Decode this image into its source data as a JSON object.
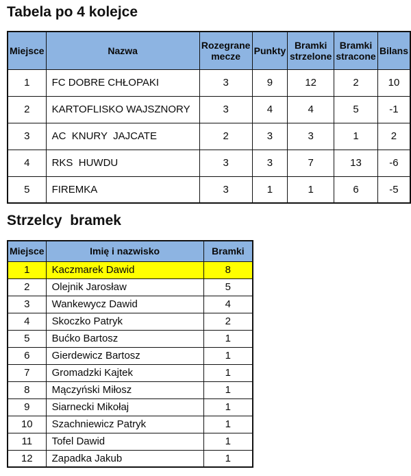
{
  "titles": {
    "league": "Tabela po 4 kolejce",
    "scorers": "Strzelcy  bramek"
  },
  "colors": {
    "header_bg": "#8DB4E2",
    "highlight": "#FFFF00",
    "border": "#111111",
    "text": "#0a0a0a"
  },
  "league_table": {
    "headers": [
      "Miejsce",
      "Nazwa",
      "Rozegrane mecze",
      "Punkty",
      "Bramki strzelone",
      "Bramki stracone",
      "Bilans"
    ],
    "rows": [
      [
        "1",
        "FC DOBRE CHŁOPAKI",
        "3",
        "9",
        "12",
        "2",
        "10"
      ],
      [
        "2",
        "KARTOFLISKO WAJSZNORY",
        "3",
        "4",
        "4",
        "5",
        "-1"
      ],
      [
        "3",
        "AC  KNURY  JAJCATE",
        "2",
        "3",
        "3",
        "1",
        "2"
      ],
      [
        "4",
        "RKS  HUWDU",
        "3",
        "3",
        "7",
        "13",
        "-6"
      ],
      [
        "5",
        "FIREMKA",
        "3",
        "1",
        "1",
        "6",
        "-5"
      ]
    ]
  },
  "scorers_table": {
    "headers": [
      "Miejsce",
      "Imię i nazwisko",
      "Bramki"
    ],
    "highlighted_row_index": 0,
    "rows": [
      [
        "1",
        "Kaczmarek Dawid",
        "8"
      ],
      [
        "2",
        "Olejnik Jarosław",
        "5"
      ],
      [
        "3",
        "Wankewycz Dawid",
        "4"
      ],
      [
        "4",
        "Skoczko Patryk",
        "2"
      ],
      [
        "5",
        "Bućko Bartosz",
        "1"
      ],
      [
        "6",
        "Gierdewicz Bartosz",
        "1"
      ],
      [
        "7",
        "Gromadzki Kajtek",
        "1"
      ],
      [
        "8",
        "Mączyński Miłosz",
        "1"
      ],
      [
        "9",
        "Siarnecki Mikołaj",
        "1"
      ],
      [
        "10",
        "Szachniewicz Patryk",
        "1"
      ],
      [
        "11",
        "Tofel Dawid",
        "1"
      ],
      [
        "12",
        "Zapadka Jakub",
        "1"
      ]
    ]
  }
}
